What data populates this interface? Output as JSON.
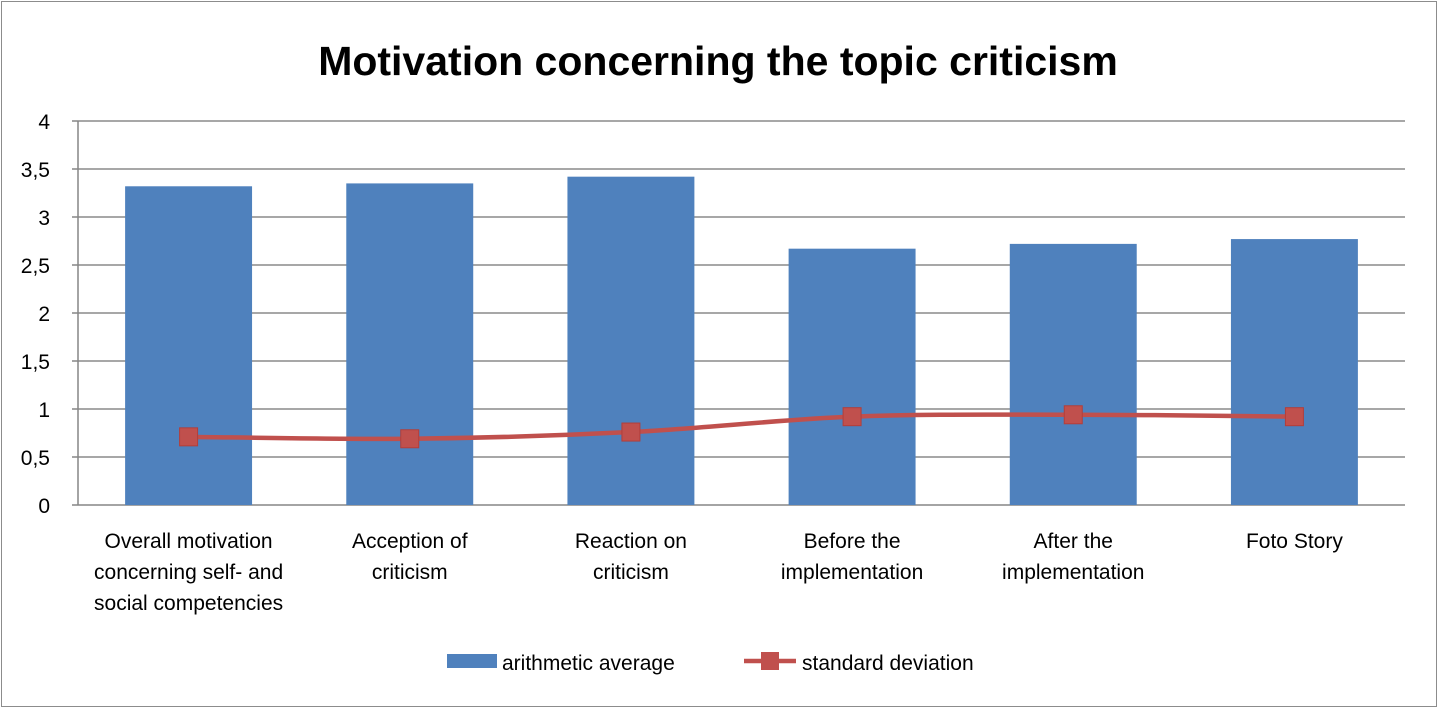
{
  "chart_data": {
    "type": "bar",
    "title": "Motivation concerning the topic criticism",
    "categories": [
      [
        "Overall motivation",
        "concerning self- and",
        "social competencies"
      ],
      [
        "Acception of",
        "criticism"
      ],
      [
        "Reaction on",
        "criticism"
      ],
      [
        "Before the",
        "implementation"
      ],
      [
        "After the",
        "implementation"
      ],
      [
        "Foto Story"
      ]
    ],
    "series": [
      {
        "name": "arithmetic average",
        "type": "bar",
        "color": "#4F81BD",
        "values": [
          3.32,
          3.35,
          3.42,
          2.67,
          2.72,
          2.77
        ]
      },
      {
        "name": "standard deviation",
        "type": "line",
        "color": "#C0504D",
        "marker": "square",
        "values": [
          0.71,
          0.69,
          0.76,
          0.92,
          0.94,
          0.92
        ]
      }
    ],
    "ylim": [
      0,
      4
    ],
    "yticks": [
      "0",
      "0,5",
      "1",
      "1,5",
      "2",
      "2,5",
      "3",
      "3,5",
      "4"
    ],
    "grid": true,
    "legend_position": "bottom",
    "xlabel": "",
    "ylabel": ""
  }
}
